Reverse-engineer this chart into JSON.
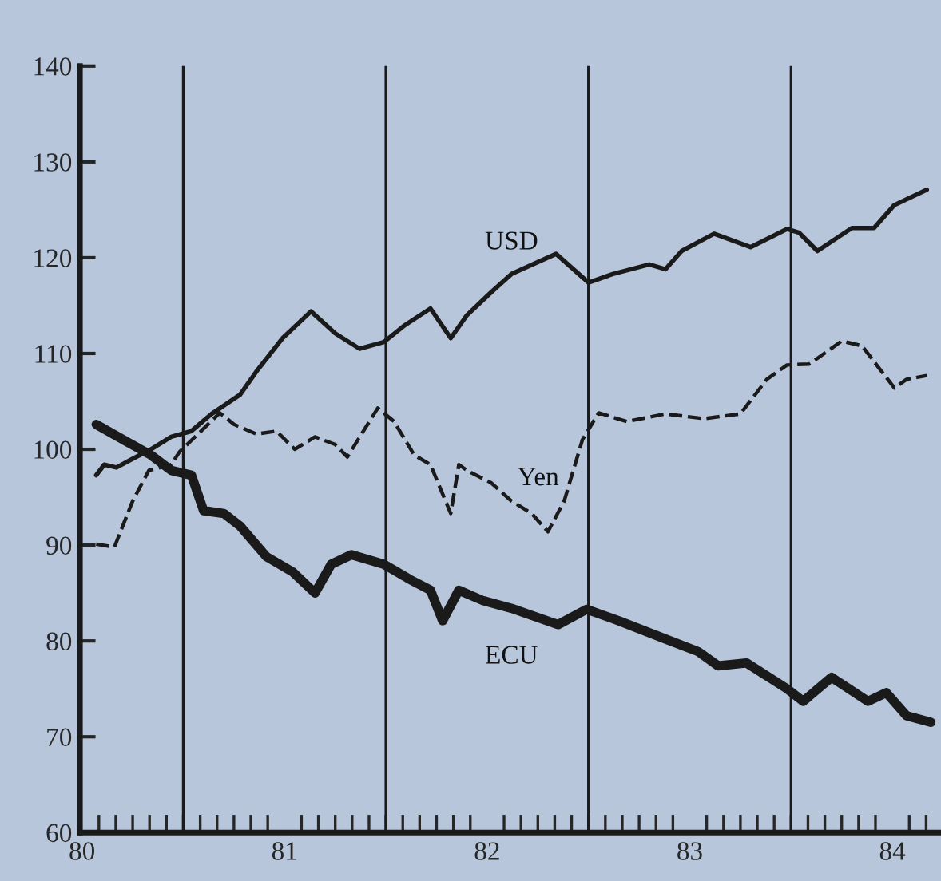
{
  "chart_data": {
    "type": "line",
    "xlim": [
      79.99,
      84.24
    ],
    "ylim": [
      60,
      140
    ],
    "xticks": [
      80,
      81,
      82,
      83,
      84
    ],
    "yticks": [
      60,
      70,
      80,
      90,
      100,
      110,
      120,
      130,
      140
    ],
    "grid": false,
    "legend": false,
    "ref_lines": [
      {
        "axis": "x",
        "value": 80.5,
        "color": "#1a1a1a"
      },
      {
        "axis": "x",
        "value": 81.5,
        "color": "#1a1a1a"
      },
      {
        "axis": "x",
        "value": 82.5,
        "color": "#1a1a1a"
      },
      {
        "axis": "x",
        "value": 83.5,
        "color": "#1a1a1a"
      }
    ],
    "series": [
      {
        "name": "USD",
        "color": "#1a1a1a",
        "line_style": "solid",
        "x": [
          80.07,
          80.11,
          80.17,
          80.24,
          80.34,
          80.44,
          80.54,
          80.64,
          80.78,
          80.86,
          80.99,
          81.13,
          81.25,
          81.37,
          81.49,
          81.59,
          81.72,
          81.82,
          81.9,
          82.02,
          82.12,
          82.34,
          82.5,
          82.62,
          82.8,
          82.88,
          82.96,
          83.12,
          83.3,
          83.48,
          83.54,
          83.63,
          83.8,
          83.91,
          84.01,
          84.17
        ],
        "values": [
          97.3,
          98.4,
          98.1,
          98.9,
          100.0,
          101.3,
          101.9,
          103.7,
          105.7,
          108.1,
          111.6,
          114.4,
          112.1,
          110.5,
          111.2,
          112.9,
          114.7,
          111.6,
          114.0,
          116.4,
          118.3,
          120.4,
          117.4,
          118.3,
          119.3,
          118.8,
          120.7,
          122.5,
          121.1,
          123.0,
          122.6,
          120.7,
          123.1,
          123.1,
          125.5,
          127.1
        ]
      },
      {
        "name": "Yen",
        "color": "#1a1a1a",
        "line_style": "dashed",
        "x": [
          80.07,
          80.16,
          80.25,
          80.33,
          80.44,
          80.48,
          80.68,
          80.75,
          80.86,
          80.96,
          81.05,
          81.15,
          81.25,
          81.31,
          81.38,
          81.46,
          81.54,
          81.64,
          81.72,
          81.82,
          81.86,
          81.9,
          82.02,
          82.12,
          82.22,
          82.3,
          82.38,
          82.47,
          82.55,
          82.69,
          82.88,
          83.07,
          83.25,
          83.38,
          83.48,
          83.59,
          83.75,
          83.85,
          84.01,
          84.07,
          84.17
        ],
        "values": [
          90.1,
          89.8,
          94.6,
          97.8,
          98.4,
          99.7,
          103.8,
          102.6,
          101.6,
          101.9,
          100.0,
          101.3,
          100.5,
          99.2,
          101.6,
          104.3,
          102.9,
          99.4,
          98.4,
          93.3,
          98.4,
          97.8,
          96.5,
          94.6,
          93.3,
          91.4,
          94.6,
          101.0,
          103.8,
          102.9,
          103.7,
          103.2,
          103.7,
          107.3,
          108.8,
          108.9,
          111.3,
          110.8,
          106.4,
          107.3,
          107.7
        ]
      },
      {
        "name": "ECU",
        "color": "#1a1a1a",
        "line_style": "solid",
        "x": [
          80.07,
          80.22,
          80.34,
          80.44,
          80.54,
          80.6,
          80.7,
          80.78,
          80.91,
          81.04,
          81.15,
          81.23,
          81.33,
          81.49,
          81.62,
          81.72,
          81.78,
          81.86,
          81.98,
          82.12,
          82.35,
          82.49,
          82.65,
          82.88,
          83.04,
          83.14,
          83.28,
          83.48,
          83.56,
          83.7,
          83.88,
          83.97,
          84.07,
          84.19
        ],
        "values": [
          102.6,
          100.8,
          99.4,
          97.8,
          97.3,
          93.6,
          93.3,
          92.0,
          88.8,
          87.2,
          85.0,
          88.0,
          89.0,
          88.0,
          86.4,
          85.3,
          82.1,
          85.3,
          84.2,
          83.4,
          81.7,
          83.3,
          82.1,
          80.2,
          78.9,
          77.4,
          77.7,
          75.0,
          73.7,
          76.2,
          73.7,
          74.6,
          72.2,
          71.5
        ]
      }
    ]
  }
}
